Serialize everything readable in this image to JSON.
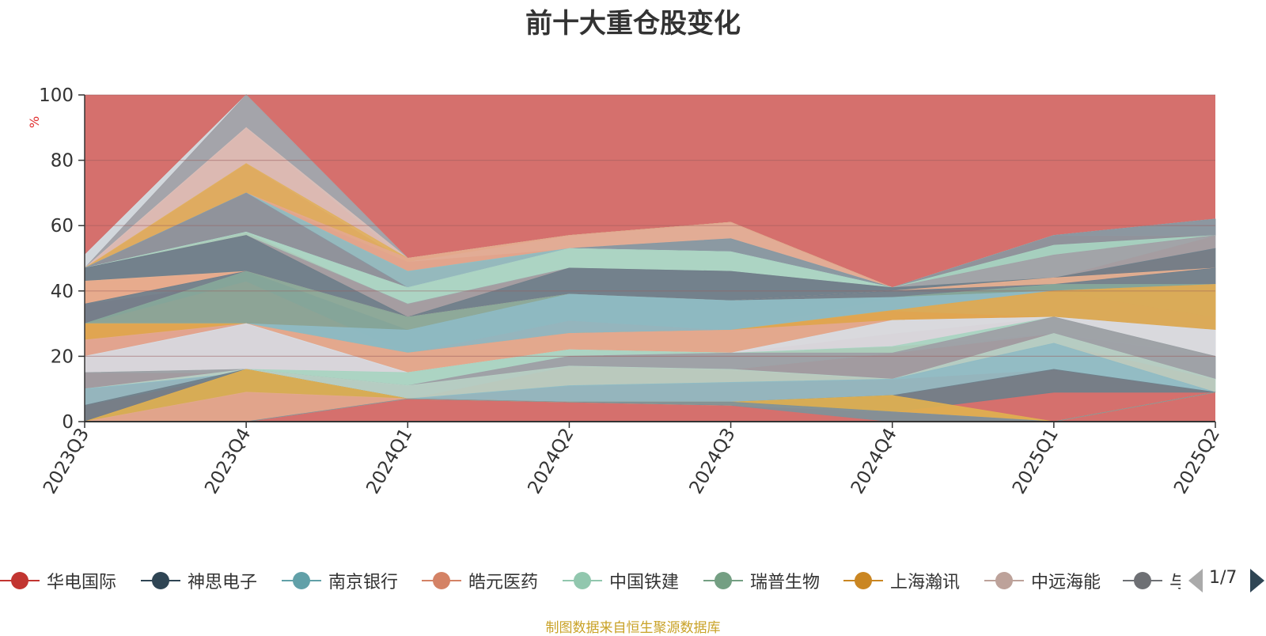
{
  "chart_data": {
    "type": "area",
    "title": "前十大重仓股变化",
    "ylabel": "%",
    "ylim": [
      0,
      100
    ],
    "yticks": [
      0,
      20,
      40,
      60,
      80,
      100
    ],
    "grid": true,
    "legend_position": "bottom",
    "x": [
      "2023Q3",
      "2023Q4",
      "2024Q1",
      "2024Q2",
      "2024Q3",
      "2024Q4",
      "2025Q1",
      "2025Q2"
    ],
    "bands": [
      {
        "name": "",
        "color": "#8a8a8a",
        "lower": [
          47,
          100,
          50,
          57,
          61,
          41,
          57,
          62
        ],
        "upper": [
          51,
          100,
          50,
          57,
          61,
          41,
          57,
          62
        ]
      },
      {
        "name": "",
        "color": "#d8dde3",
        "lower": [
          47,
          90,
          49,
          53,
          56,
          41,
          57,
          57
        ],
        "upper": [
          51,
          100,
          50,
          57,
          61,
          41,
          57,
          62
        ]
      },
      {
        "name": "",
        "color": "#a0a0a6",
        "lower": [
          47,
          90,
          49,
          57,
          61,
          41,
          57,
          57
        ],
        "upper": [
          47,
          100,
          50,
          57,
          61,
          41,
          57,
          62
        ]
      },
      {
        "name": "",
        "color": "#dcbfb8",
        "lower": [
          47,
          79,
          49,
          57,
          61,
          41,
          57,
          57
        ],
        "upper": [
          47,
          90,
          50,
          57,
          61,
          41,
          57,
          57
        ]
      },
      {
        "name": "",
        "color": "#e0b060",
        "lower": [
          47,
          70,
          49,
          57,
          61,
          41,
          57,
          57
        ],
        "upper": [
          47,
          79,
          50,
          57,
          61,
          41,
          57,
          57
        ]
      },
      {
        "name": "",
        "color": "#e3a88f",
        "lower": [
          47,
          70,
          46,
          53,
          56,
          41,
          57,
          57
        ],
        "upper": [
          47,
          70,
          50,
          57,
          61,
          41,
          57,
          57
        ]
      },
      {
        "name": "",
        "color": "#8fbfc4",
        "lower": [
          47,
          70,
          41,
          53,
          52,
          41,
          57,
          57
        ],
        "upper": [
          47,
          70,
          46,
          53,
          56,
          41,
          57,
          57
        ]
      },
      {
        "name": "",
        "color": "#8a96a0",
        "lower": [
          47,
          58,
          41,
          53,
          52,
          41,
          51,
          57
        ],
        "upper": [
          47,
          70,
          41,
          53,
          56,
          41,
          57,
          62
        ]
      },
      {
        "name": "",
        "color": "#dadde4",
        "lower": [
          47,
          58,
          36,
          47,
          46,
          41,
          51,
          57
        ],
        "upper": [
          47,
          58,
          41,
          53,
          52,
          41,
          51,
          57
        ]
      },
      {
        "name": "",
        "color": "#a8d4c1",
        "lower": [
          47,
          57,
          36,
          47,
          46,
          41,
          44,
          57
        ],
        "upper": [
          47,
          58,
          41,
          53,
          52,
          41,
          54,
          57
        ]
      },
      {
        "name": "",
        "color": "#a1a1a6",
        "lower": [
          43,
          46,
          32,
          39,
          37,
          40,
          44,
          53
        ],
        "upper": [
          47,
          57,
          36,
          47,
          46,
          41,
          51,
          57
        ]
      },
      {
        "name": "",
        "color": "#6f7f8a",
        "lower": [
          43,
          46,
          28,
          39,
          37,
          40,
          42,
          47
        ],
        "upper": [
          47,
          57,
          32,
          47,
          46,
          41,
          44,
          53
        ]
      },
      {
        "name": "",
        "color": "#e8b090",
        "lower": [
          36,
          43,
          28,
          39,
          37,
          38,
          42,
          42
        ],
        "upper": [
          43,
          46,
          32,
          39,
          37,
          40,
          44,
          47
        ]
      },
      {
        "name": "",
        "color": "#6e7f8d",
        "lower": [
          30,
          43,
          21,
          31,
          28,
          38,
          40,
          42
        ],
        "upper": [
          36,
          46,
          28,
          39,
          37,
          40,
          42,
          47
        ]
      },
      {
        "name": "",
        "color": "#87a89a",
        "lower": [
          30,
          30,
          21,
          31,
          28,
          34,
          40,
          32
        ],
        "upper": [
          30,
          46,
          32,
          39,
          37,
          38,
          42,
          42
        ]
      },
      {
        "name": "",
        "color": "#8fbbc4",
        "lower": [
          30,
          30,
          21,
          27,
          28,
          34,
          32,
          28
        ],
        "upper": [
          30,
          30,
          28,
          39,
          37,
          38,
          40,
          42
        ]
      },
      {
        "name": "",
        "color": "#e1a94f",
        "lower": [
          25,
          30,
          15,
          22,
          21,
          31,
          32,
          28
        ],
        "upper": [
          30,
          30,
          21,
          27,
          28,
          34,
          40,
          42
        ]
      },
      {
        "name": "",
        "color": "#e3a892",
        "lower": [
          20,
          30,
          15,
          22,
          21,
          27,
          32,
          20
        ],
        "upper": [
          25,
          30,
          21,
          27,
          28,
          31,
          32,
          28
        ]
      },
      {
        "name": "",
        "color": "#d8dde4",
        "lower": [
          15,
          15,
          11,
          20,
          21,
          23,
          27,
          20
        ],
        "upper": [
          20,
          30,
          15,
          22,
          21,
          31,
          32,
          28
        ]
      },
      {
        "name": "",
        "color": "#a8d4c1",
        "lower": [
          15,
          15,
          11,
          17,
          16,
          21,
          27,
          13
        ],
        "upper": [
          15,
          16,
          15,
          22,
          21,
          23,
          32,
          20
        ]
      },
      {
        "name": "",
        "color": "#9d9ea5",
        "lower": [
          10,
          15,
          7,
          17,
          16,
          13,
          24,
          13
        ],
        "upper": [
          15,
          16,
          11,
          20,
          21,
          21,
          32,
          20
        ]
      },
      {
        "name": "",
        "color": "#b7d0c4",
        "lower": [
          10,
          15,
          7,
          11,
          12,
          13,
          16,
          9
        ],
        "upper": [
          10,
          16,
          11,
          17,
          16,
          13,
          27,
          13
        ]
      },
      {
        "name": "",
        "color": "#8fbbc4",
        "lower": [
          5,
          15,
          7,
          6,
          6,
          8,
          16,
          9
        ],
        "upper": [
          10,
          15,
          7,
          11,
          12,
          13,
          24,
          9
        ]
      },
      {
        "name": "",
        "color": "#6f7f8a",
        "lower": [
          0,
          9,
          7,
          6,
          6,
          3,
          9,
          9
        ],
        "upper": [
          5,
          16,
          7,
          6,
          6,
          8,
          16,
          9
        ]
      },
      {
        "name": "",
        "color": "#e0b050",
        "lower": [
          0,
          9,
          7,
          6,
          5,
          3,
          0,
          9
        ],
        "upper": [
          0,
          16,
          7,
          6,
          6,
          8,
          0,
          9
        ]
      },
      {
        "name": "",
        "color": "#e2a88e",
        "lower": [
          0,
          0,
          7,
          6,
          5,
          3,
          0,
          9
        ],
        "upper": [
          0,
          9,
          7,
          6,
          5,
          3,
          0,
          9
        ]
      },
      {
        "name": "",
        "color": "#7f9199",
        "lower": [
          0,
          0,
          7,
          6,
          5,
          0,
          0,
          9
        ],
        "upper": [
          0,
          0,
          7,
          6,
          6,
          3,
          0,
          9
        ]
      }
    ],
    "background_series_color": "#d5706d"
  },
  "legend": {
    "items": [
      {
        "label": "华电国际",
        "color": "#c23531"
      },
      {
        "label": "神思电子",
        "color": "#2f4554"
      },
      {
        "label": "南京银行",
        "color": "#61a0a8"
      },
      {
        "label": "皓元医药",
        "color": "#d48265"
      },
      {
        "label": "中国铁建",
        "color": "#91c7ae"
      },
      {
        "label": "瑞普生物",
        "color": "#749f83"
      },
      {
        "label": "上海瀚讯",
        "color": "#ca8622"
      },
      {
        "label": "中远海能",
        "color": "#bda29a"
      },
      {
        "label": "与",
        "color": "#6e7074"
      }
    ],
    "page_text": "1/7"
  },
  "source_note": "制图数据来自恒生聚源数据库"
}
